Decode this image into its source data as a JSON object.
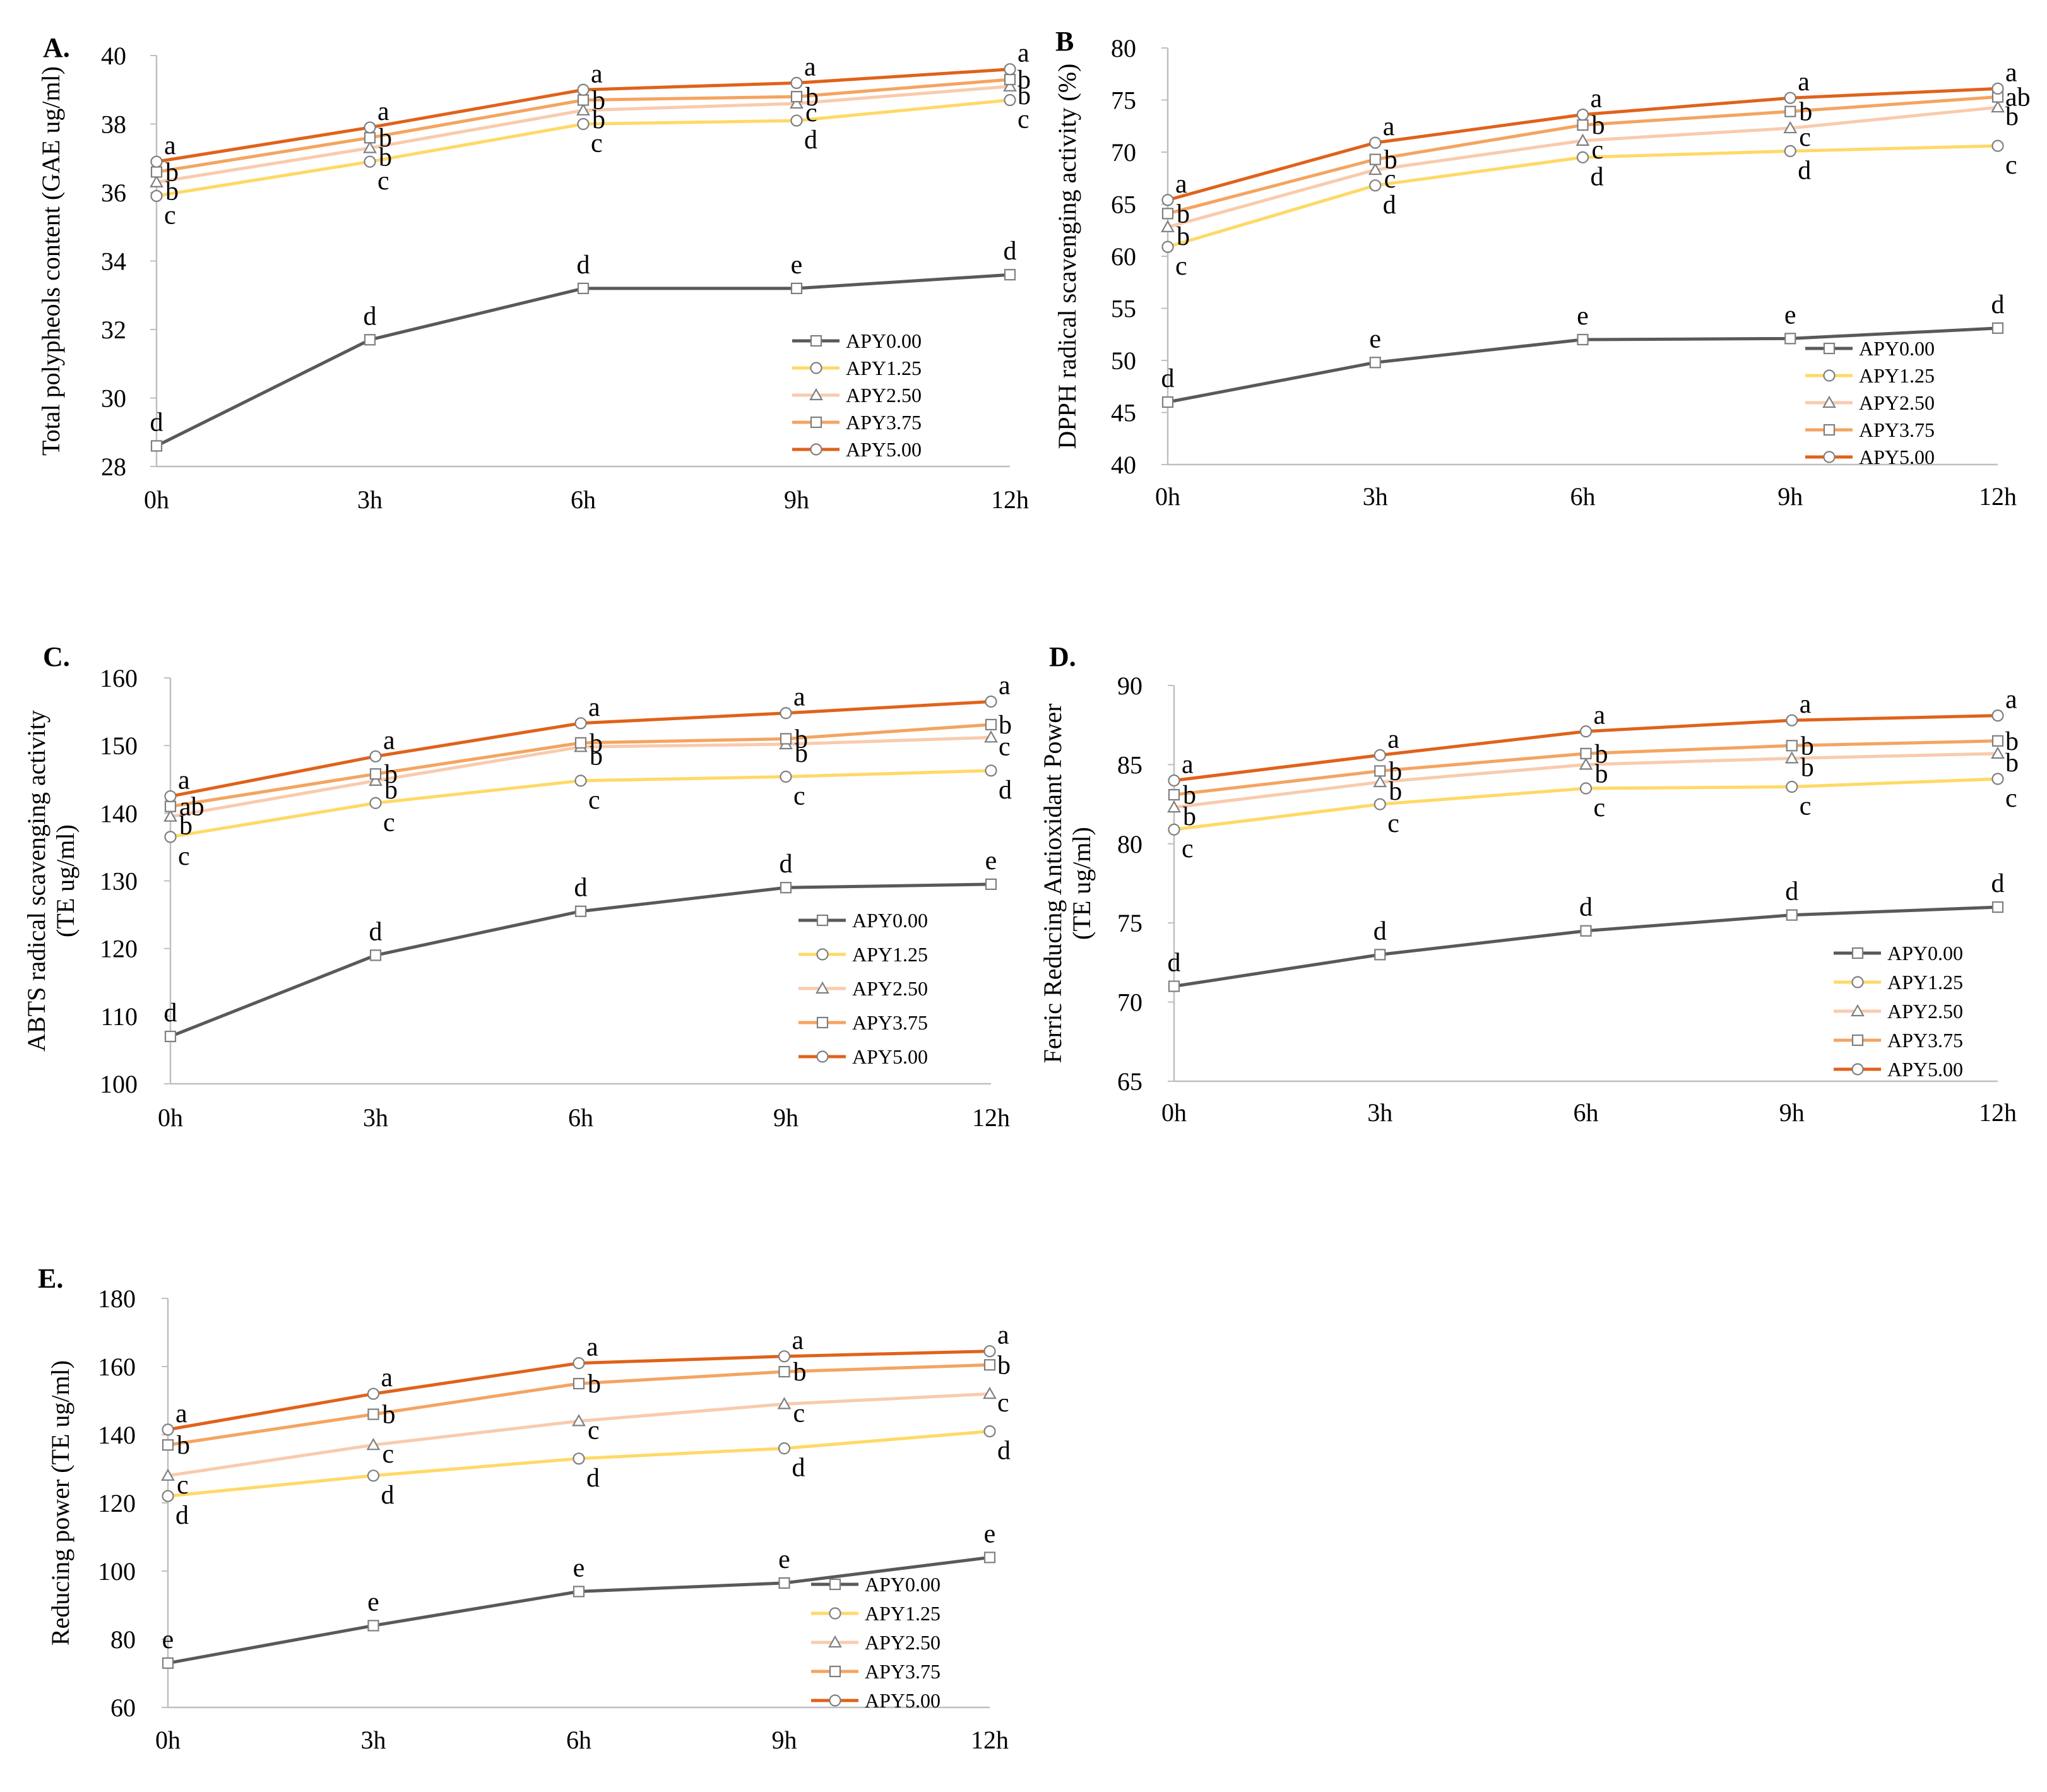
{
  "x_categories": [
    "0h",
    "3h",
    "6h",
    "9h",
    "12h"
  ],
  "series_names": [
    "APY0.00",
    "APY1.25",
    "APY2.50",
    "APY3.75",
    "APY5.00"
  ],
  "series_colors": [
    "#595959",
    "#FFD966",
    "#F8CBAD",
    "#F4A460",
    "#E0621A"
  ],
  "series_markers": [
    "square",
    "circle",
    "triangle",
    "square",
    "circle"
  ],
  "chart_data": [
    {
      "type": "line",
      "panel_label": "A.",
      "ylabel": [
        "Total polypheols content (GAE ug/ml)"
      ],
      "ylim": [
        28,
        40
      ],
      "yticks": [
        28,
        30,
        32,
        34,
        36,
        38,
        40
      ],
      "categories": [
        "0h",
        "3h",
        "6h",
        "9h",
        "12h"
      ],
      "series": [
        {
          "name": "APY0.00",
          "values": [
            28.6,
            31.7,
            33.2,
            33.2,
            33.6
          ],
          "letters": [
            "d",
            "d",
            "d",
            "e",
            "d"
          ]
        },
        {
          "name": "APY1.25",
          "values": [
            35.9,
            36.9,
            38.0,
            38.1,
            38.7
          ],
          "letters": [
            "c",
            "c",
            "c",
            "d",
            "c"
          ]
        },
        {
          "name": "APY2.50",
          "values": [
            36.3,
            37.3,
            38.4,
            38.6,
            39.1
          ],
          "letters": [
            "b",
            "b",
            "b",
            "c",
            "b"
          ]
        },
        {
          "name": "APY3.75",
          "values": [
            36.6,
            37.6,
            38.7,
            38.8,
            39.3
          ],
          "letters": [
            "b",
            "b",
            "b",
            "b",
            "b"
          ]
        },
        {
          "name": "APY5.00",
          "values": [
            36.9,
            37.9,
            39.0,
            39.2,
            39.6
          ],
          "letters": [
            "a",
            "a",
            "a",
            "a",
            "a"
          ]
        }
      ]
    },
    {
      "type": "line",
      "panel_label": "B",
      "ylabel": [
        "DPPH radical scavenging activity (%)"
      ],
      "ylim": [
        40,
        80
      ],
      "yticks": [
        40,
        45,
        50,
        55,
        60,
        65,
        70,
        75,
        80
      ],
      "categories": [
        "0h",
        "3h",
        "6h",
        "9h",
        "12h"
      ],
      "series": [
        {
          "name": "APY0.00",
          "values": [
            46.0,
            49.8,
            52.0,
            52.1,
            53.1
          ],
          "letters": [
            "d",
            "e",
            "e",
            "e",
            "d"
          ]
        },
        {
          "name": "APY1.25",
          "values": [
            60.9,
            66.8,
            69.5,
            70.1,
            70.6
          ],
          "letters": [
            "c",
            "d",
            "d",
            "d",
            "c"
          ]
        },
        {
          "name": "APY2.50",
          "values": [
            62.8,
            68.3,
            71.1,
            72.3,
            74.3
          ],
          "letters": [
            "b",
            "c",
            "c",
            "c",
            "b"
          ]
        },
        {
          "name": "APY3.75",
          "values": [
            64.1,
            69.3,
            72.6,
            73.9,
            75.3
          ],
          "letters": [
            "b",
            "b",
            "b",
            "b",
            "ab"
          ]
        },
        {
          "name": "APY5.00",
          "values": [
            65.4,
            70.9,
            73.6,
            75.2,
            76.1
          ],
          "letters": [
            "a",
            "a",
            "a",
            "a",
            "a"
          ]
        }
      ]
    },
    {
      "type": "line",
      "panel_label": "C.",
      "ylabel": [
        "ABTS radical scavenging activity",
        "(TE ug/ml)"
      ],
      "ylim": [
        100,
        160
      ],
      "yticks": [
        100,
        110,
        120,
        130,
        140,
        150,
        160
      ],
      "categories": [
        "0h",
        "3h",
        "6h",
        "9h",
        "12h"
      ],
      "series": [
        {
          "name": "APY0.00",
          "values": [
            107.0,
            119.0,
            125.5,
            129.0,
            129.5
          ],
          "letters": [
            "d",
            "d",
            "d",
            "d",
            "e"
          ]
        },
        {
          "name": "APY1.25",
          "values": [
            136.5,
            141.5,
            144.8,
            145.4,
            146.3
          ],
          "letters": [
            "c",
            "c",
            "c",
            "c",
            "d"
          ]
        },
        {
          "name": "APY2.50",
          "values": [
            139.5,
            144.8,
            149.8,
            150.2,
            151.2
          ],
          "letters": [
            "b",
            "b",
            "b",
            "b",
            "c"
          ]
        },
        {
          "name": "APY3.75",
          "values": [
            141.0,
            145.8,
            150.4,
            151.0,
            153.1
          ],
          "letters": [
            "ab",
            "b",
            "b",
            "b",
            "b"
          ]
        },
        {
          "name": "APY5.00",
          "values": [
            142.5,
            148.4,
            153.3,
            154.8,
            156.5
          ],
          "letters": [
            "a",
            "a",
            "a",
            "a",
            "a"
          ]
        }
      ]
    },
    {
      "type": "line",
      "panel_label": "D.",
      "ylabel": [
        "Ferric Reducing Antioxidant Power",
        "(TE ug/ml)"
      ],
      "ylim": [
        65,
        90
      ],
      "yticks": [
        65,
        70,
        75,
        80,
        85,
        90
      ],
      "categories": [
        "0h",
        "3h",
        "6h",
        "9h",
        "12h"
      ],
      "series": [
        {
          "name": "APY0.00",
          "values": [
            71.0,
            73.0,
            74.5,
            75.5,
            76.0
          ],
          "letters": [
            "d",
            "d",
            "d",
            "d",
            "d"
          ]
        },
        {
          "name": "APY1.25",
          "values": [
            80.9,
            82.5,
            83.5,
            83.6,
            84.1
          ],
          "letters": [
            "c",
            "c",
            "c",
            "c",
            "c"
          ]
        },
        {
          "name": "APY2.50",
          "values": [
            82.3,
            83.9,
            85.0,
            85.4,
            85.7
          ],
          "letters": [
            "b",
            "b",
            "b",
            "b",
            "b"
          ]
        },
        {
          "name": "APY3.75",
          "values": [
            83.1,
            84.6,
            85.7,
            86.2,
            86.5
          ],
          "letters": [
            "b",
            "b",
            "b",
            "b",
            "b"
          ]
        },
        {
          "name": "APY5.00",
          "values": [
            84.0,
            85.6,
            87.1,
            87.8,
            88.1
          ],
          "letters": [
            "a",
            "a",
            "a",
            "a",
            "a"
          ]
        }
      ]
    },
    {
      "type": "line",
      "panel_label": "E.",
      "ylabel": [
        "Reducing power (TE ug/ml)"
      ],
      "ylim": [
        60,
        180
      ],
      "yticks": [
        60,
        80,
        100,
        120,
        140,
        160,
        180
      ],
      "categories": [
        "0h",
        "3h",
        "6h",
        "9h",
        "12h"
      ],
      "series": [
        {
          "name": "APY0.00",
          "values": [
            73.0,
            84.0,
            94.0,
            96.5,
            104.0
          ],
          "letters": [
            "e",
            "e",
            "e",
            "e",
            "e"
          ]
        },
        {
          "name": "APY1.25",
          "values": [
            122.0,
            128.0,
            133.0,
            136.0,
            141.0
          ],
          "letters": [
            "d",
            "d",
            "d",
            "d",
            "d"
          ]
        },
        {
          "name": "APY2.50",
          "values": [
            128.0,
            137.0,
            144.0,
            149.0,
            152.0
          ],
          "letters": [
            "c",
            "c",
            "c",
            "c",
            "c"
          ]
        },
        {
          "name": "APY3.75",
          "values": [
            137.0,
            146.0,
            155.0,
            158.5,
            160.5
          ],
          "letters": [
            "b",
            "b",
            "b",
            "b",
            "b"
          ]
        },
        {
          "name": "APY5.00",
          "values": [
            141.5,
            152.0,
            161.0,
            163.0,
            164.5
          ],
          "letters": [
            "a",
            "a",
            "a",
            "a",
            "a"
          ]
        }
      ]
    }
  ]
}
